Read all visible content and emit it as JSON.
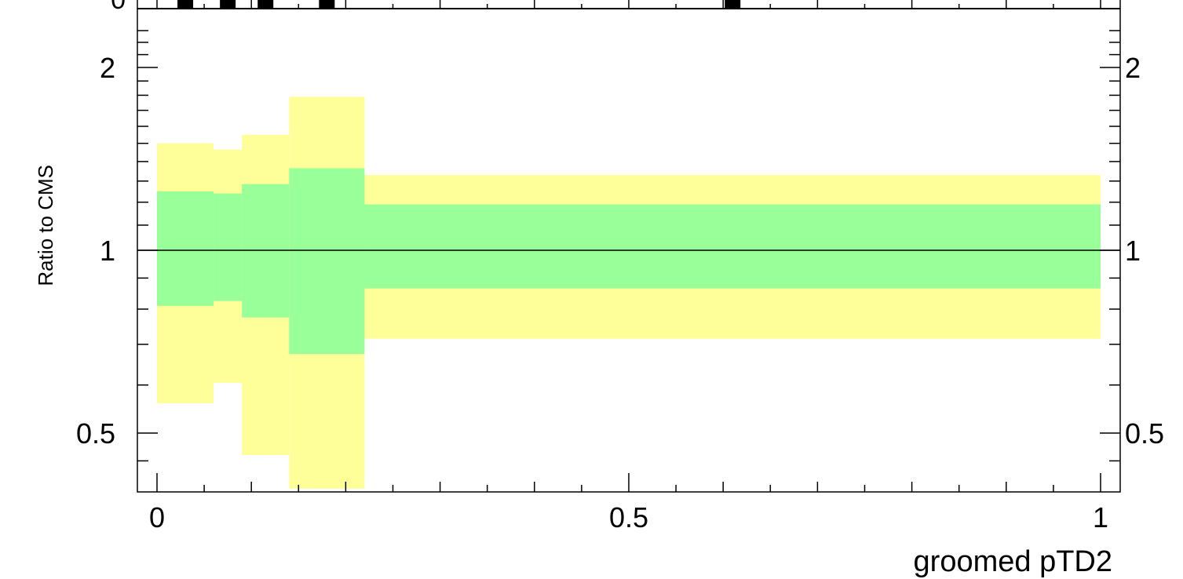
{
  "chart_data": {
    "type": "area",
    "xlabel": "groomed pTD2",
    "ylabel": "Ratio to CMS",
    "xlim": [
      -0.02,
      1.02
    ],
    "ylim": [
      0.405,
      2.4
    ],
    "log_y": true,
    "x_ticks": [
      {
        "value": 0,
        "label": "0"
      },
      {
        "value": 0.5,
        "label": "0.5"
      },
      {
        "value": 1,
        "label": "1"
      }
    ],
    "y_ticks": [
      {
        "value": 0.5,
        "label": "0.5"
      },
      {
        "value": 1,
        "label": "1"
      },
      {
        "value": 2,
        "label": "2"
      }
    ],
    "reference_line": 1.0,
    "bins": [
      {
        "x_low": 0.0,
        "x_high": 0.06,
        "inner": [
          0.81,
          1.25
        ],
        "outer": [
          0.56,
          1.5
        ]
      },
      {
        "x_low": 0.06,
        "x_high": 0.09,
        "inner": [
          0.825,
          1.24
        ],
        "outer": [
          0.605,
          1.465
        ]
      },
      {
        "x_low": 0.09,
        "x_high": 0.14,
        "inner": [
          0.775,
          1.285
        ],
        "outer": [
          0.46,
          1.55
        ]
      },
      {
        "x_low": 0.14,
        "x_high": 0.22,
        "inner": [
          0.675,
          1.365
        ],
        "outer": [
          0.405,
          1.79
        ]
      },
      {
        "x_low": 0.22,
        "x_high": 1.0,
        "inner": [
          0.865,
          1.19
        ],
        "outer": [
          0.715,
          1.33
        ]
      }
    ],
    "bands": [
      {
        "name": "",
        "color": "#99ff99"
      },
      {
        "name": "",
        "color": "#ffff99"
      }
    ],
    "top_panel_markers_x": [
      0.03,
      0.075,
      0.115,
      0.18,
      0.61
    ],
    "top_panel_y_label": "0"
  }
}
